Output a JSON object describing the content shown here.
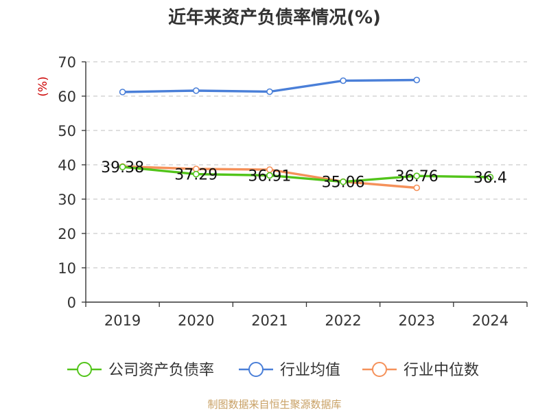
{
  "chart_data": {
    "type": "line",
    "title": "近年来资产负债率情况(%)",
    "ylabel": "(%)",
    "xlabel": "",
    "categories": [
      "2019",
      "2020",
      "2021",
      "2022",
      "2023",
      "2024"
    ],
    "ylim": [
      0,
      70
    ],
    "yticks": [
      0,
      10,
      20,
      30,
      40,
      50,
      60,
      70
    ],
    "grid": true,
    "legend_position": "bottom",
    "series": [
      {
        "name": "公司资产负债率",
        "color": "#52c41a",
        "values": [
          39.38,
          37.29,
          36.91,
          35.06,
          36.76,
          36.4
        ],
        "labels": [
          "39.38",
          "37.29",
          "36.91",
          "35.06",
          "36.76",
          "36.4"
        ]
      },
      {
        "name": "行业均值",
        "color": "#4a7fd8",
        "values": [
          61.2,
          61.6,
          61.3,
          64.5,
          64.7,
          null
        ]
      },
      {
        "name": "行业中位数",
        "color": "#f5915a",
        "values": [
          39.5,
          38.8,
          38.6,
          35.1,
          33.3,
          null
        ]
      }
    ]
  },
  "footer": {
    "source": "制图数据来自恒生聚源数据库"
  },
  "colors": {
    "title": "#333333",
    "ylabel": "#cc0000",
    "source": "#c8a064",
    "grid": "#cccccc",
    "axis": "#333333"
  }
}
